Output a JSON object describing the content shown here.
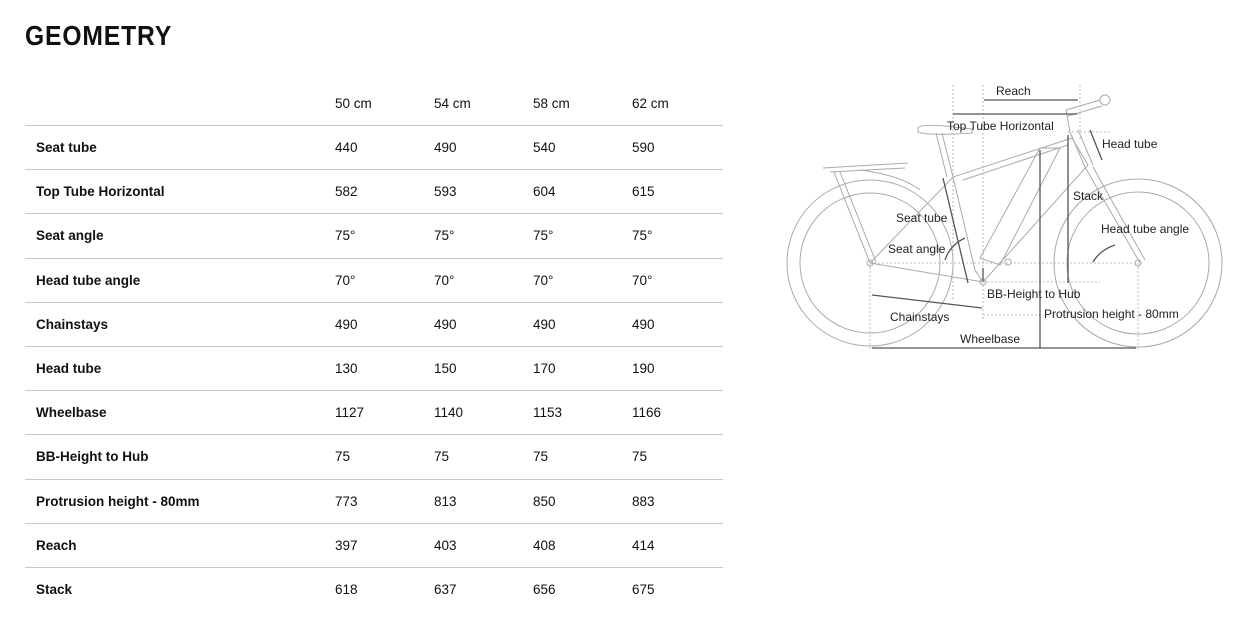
{
  "title": "GEOMETRY",
  "table": {
    "columns": [
      "50 cm",
      "54 cm",
      "58 cm",
      "62 cm"
    ],
    "rows": [
      {
        "label": "Seat tube",
        "values": [
          "440",
          "490",
          "540",
          "590"
        ]
      },
      {
        "label": "Top Tube Horizontal",
        "values": [
          "582",
          "593",
          "604",
          "615"
        ]
      },
      {
        "label": "Seat angle",
        "values": [
          "75°",
          "75°",
          "75°",
          "75°"
        ]
      },
      {
        "label": "Head tube angle",
        "values": [
          "70°",
          "70°",
          "70°",
          "70°"
        ]
      },
      {
        "label": "Chainstays",
        "values": [
          "490",
          "490",
          "490",
          "490"
        ]
      },
      {
        "label": "Head tube",
        "values": [
          "130",
          "150",
          "170",
          "190"
        ]
      },
      {
        "label": "Wheelbase",
        "values": [
          "1127",
          "1140",
          "1153",
          "1166"
        ]
      },
      {
        "label": "BB-Height to Hub",
        "values": [
          "75",
          "75",
          "75",
          "75"
        ]
      },
      {
        "label": "Protrusion height - 80mm",
        "values": [
          "773",
          "813",
          "850",
          "883"
        ]
      },
      {
        "label": "Reach",
        "values": [
          "397",
          "403",
          "408",
          "414"
        ]
      },
      {
        "label": "Stack",
        "values": [
          "618",
          "637",
          "656",
          "675"
        ]
      }
    ]
  },
  "diagram": {
    "labels": {
      "reach": "Reach",
      "top_tube": "Top Tube Horizontal",
      "head_tube": "Head tube",
      "stack": "Stack",
      "seat_tube": "Seat tube",
      "head_tube_angle": "Head tube angle",
      "seat_angle": "Seat angle",
      "bb_height": "BB-Height to Hub",
      "chainstays": "Chainstays",
      "protrusion": "Protrusion height - 80mm",
      "wheelbase": "Wheelbase"
    }
  }
}
